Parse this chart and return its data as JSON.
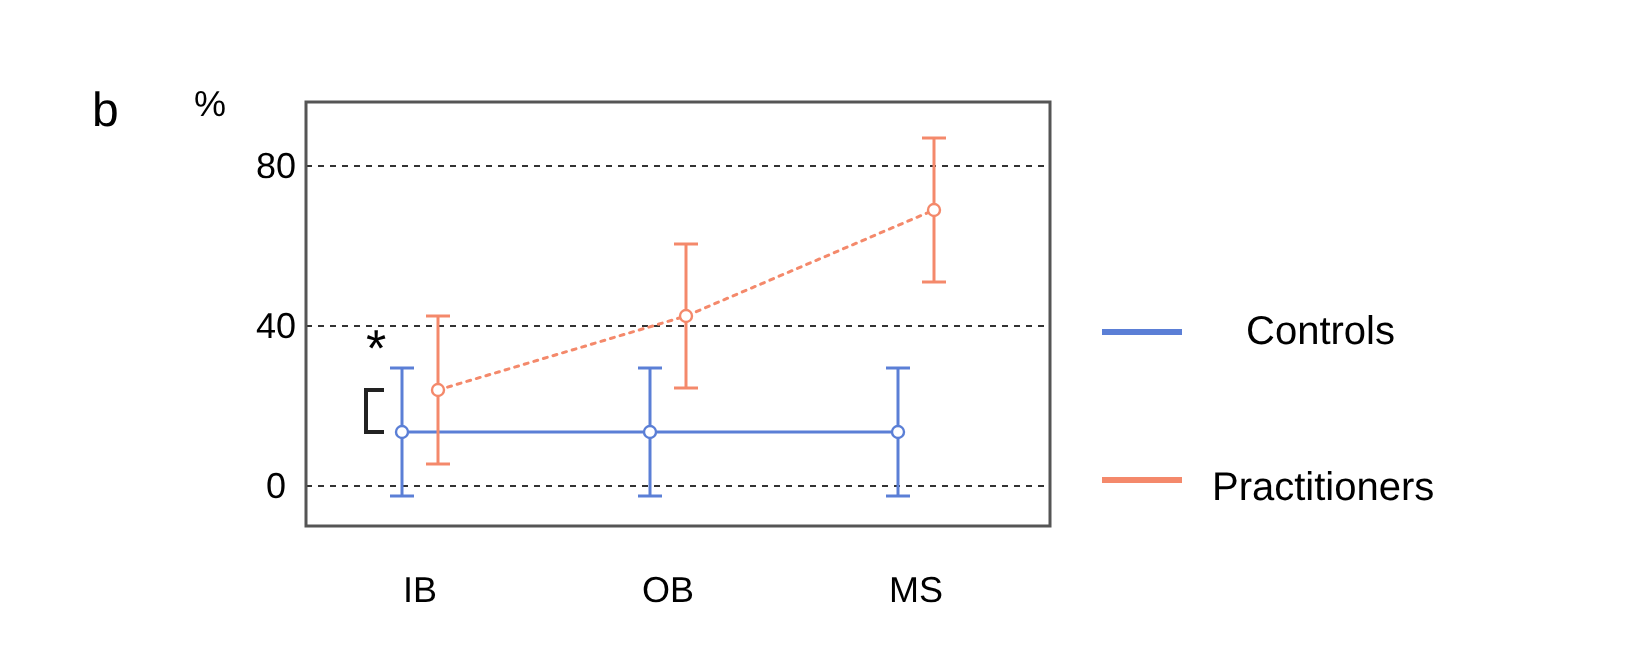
{
  "chart_data": {
    "type": "line",
    "ylabel": "%",
    "categories": [
      "IB",
      "OB",
      "MS"
    ],
    "ylim": [
      -10,
      96
    ],
    "yticks": [
      0,
      40,
      80
    ],
    "grid": "y",
    "legend": "right",
    "marker": "circle",
    "annotations": [
      "b",
      "*"
    ],
    "series": [
      {
        "name": "Controls",
        "color": "#5b7fd6",
        "values": [
          13.5,
          13.5,
          13.5
        ],
        "errors": [
          16,
          16,
          16
        ],
        "line_style": "solid"
      },
      {
        "name": "Practitioners",
        "color": "#f4896b",
        "values": [
          24,
          42.5,
          69
        ],
        "errors": [
          18.5,
          18,
          18
        ],
        "line_style": "dotted"
      }
    ]
  }
}
